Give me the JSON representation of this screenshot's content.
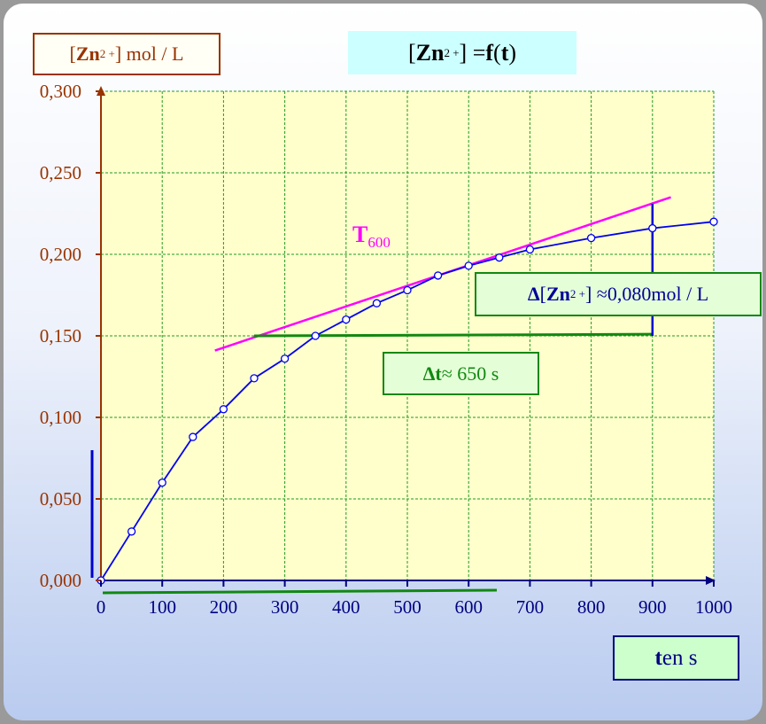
{
  "chart_data": {
    "type": "line",
    "title": [
      "[",
      "Zn",
      "2 +",
      "] =",
      "f",
      "(",
      "t",
      ")"
    ],
    "ylabel": [
      "[",
      "Zn",
      "2 +",
      "] mol / L"
    ],
    "xlabel": [
      "t",
      "en s"
    ],
    "x": [
      0,
      50,
      100,
      150,
      200,
      250,
      300,
      350,
      400,
      450,
      500,
      550,
      600,
      650,
      700,
      800,
      900,
      1000
    ],
    "values": [
      0,
      0.03,
      0.06,
      0.088,
      0.105,
      0.124,
      0.136,
      0.15,
      0.16,
      0.17,
      0.178,
      0.187,
      0.193,
      0.198,
      0.203,
      0.21,
      0.216,
      0.22
    ],
    "color": "#0000ee",
    "xlim": [
      0,
      1000
    ],
    "ylim": [
      0,
      0.3
    ],
    "xticks": [
      0,
      100,
      200,
      300,
      400,
      500,
      600,
      700,
      800,
      900,
      1000
    ],
    "yticks": [
      {
        "value": 0,
        "label": "0,000"
      },
      {
        "value": 0.05,
        "label": "0,050"
      },
      {
        "value": 0.1,
        "label": "0,100"
      },
      {
        "value": 0.15,
        "label": "0,150"
      },
      {
        "value": 0.2,
        "label": "0,200"
      },
      {
        "value": 0.25,
        "label": "0,250"
      },
      {
        "value": 0.3,
        "label": "0,300"
      }
    ],
    "grid": true,
    "tangent": {
      "label": "T",
      "sub": "600",
      "color": "#ff00ff",
      "x": [
        186,
        930
      ],
      "y": [
        0.141,
        0.235
      ]
    },
    "delta_t_line": {
      "color": "#118811",
      "x": [
        250,
        900
      ],
      "y": [
        0.15,
        0.151
      ]
    },
    "delta_c_line": {
      "color": "#0000cc",
      "x": [
        900,
        900
      ],
      "y": [
        0.15,
        0.231
      ]
    },
    "delta_c_label": [
      "Δ",
      "[",
      "Zn",
      "2 +",
      "] ≈",
      "0,080",
      "mol / L"
    ],
    "delta_t_label": [
      "Δt",
      "≈ 650 s"
    ]
  }
}
